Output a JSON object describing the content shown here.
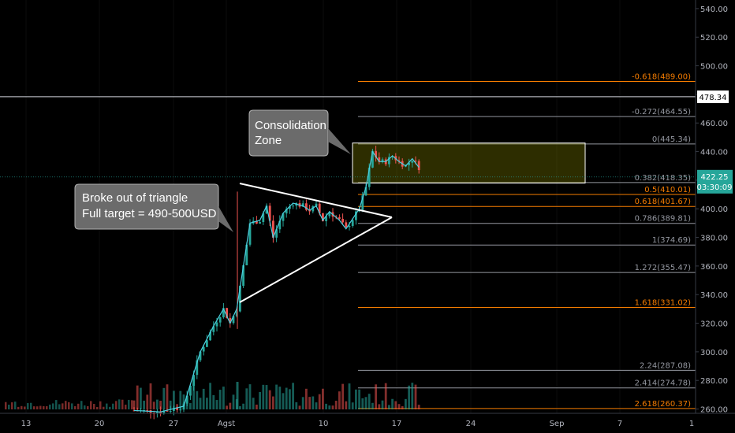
{
  "chart_data": {
    "type": "candlestick",
    "title": "",
    "y_axis": {
      "ticks": [
        "540.00",
        "520.00",
        "500.00",
        "480.00",
        "460.00",
        "440.00",
        "420.00",
        "400.00",
        "380.00",
        "360.00",
        "340.00",
        "320.00",
        "300.00",
        "280.00",
        "260.00"
      ],
      "range": [
        257,
        546
      ]
    },
    "x_axis": {
      "ticks": [
        "13",
        "20",
        "27",
        "Agst",
        "10",
        "17",
        "24",
        "Sep",
        "7",
        "1"
      ]
    },
    "price_levels": [
      {
        "label": "478.34",
        "price": 478.34,
        "color": "#ffffff"
      }
    ],
    "last_price": {
      "price": "422.25",
      "countdown": "03:30:09",
      "color": "#26a69a",
      "value": 422.25
    },
    "fibonacci": [
      {
        "label": "-0.618(489.00)",
        "price": 489.0,
        "color": "#f57c00"
      },
      {
        "label": "-0.272(464.55)",
        "price": 464.55,
        "color": "#9598a1"
      },
      {
        "label": "0(445.34)",
        "price": 445.34,
        "color": "#9598a1"
      },
      {
        "label": "0.382(418.35)",
        "price": 418.35,
        "color": "#9598a1"
      },
      {
        "label": "0.5(410.01)",
        "price": 410.01,
        "color": "#f57c00"
      },
      {
        "label": "0.618(401.67)",
        "price": 401.67,
        "color": "#f57c00"
      },
      {
        "label": "0.786(389.81)",
        "price": 389.81,
        "color": "#9598a1"
      },
      {
        "label": "1(374.69)",
        "price": 374.69,
        "color": "#9598a1"
      },
      {
        "label": "1.272(355.47)",
        "price": 355.47,
        "color": "#9598a1"
      },
      {
        "label": "1.618(331.02)",
        "price": 331.02,
        "color": "#f57c00"
      },
      {
        "label": "2.24(287.08)",
        "price": 287.08,
        "color": "#9598a1"
      },
      {
        "label": "2.414(274.78)",
        "price": 274.78,
        "color": "#9598a1"
      },
      {
        "label": "2.618(260.37)",
        "price": 260.37,
        "color": "#f57c00"
      }
    ],
    "annotations": [
      {
        "text": [
          "Broke out of triangle",
          "Full target = 490-500USD"
        ]
      },
      {
        "text": [
          "Consolidation",
          "Zone"
        ]
      }
    ],
    "consolidation_zone": {
      "price_low": 418,
      "price_high": 446,
      "color": "#808000"
    },
    "up_color": "#26a69a",
    "down_color": "#ef5350",
    "ma_color": "#4dd0e1",
    "candle_path": [
      [
        0,
        259
      ],
      [
        8,
        258
      ],
      [
        15,
        262
      ],
      [
        20,
        300
      ],
      [
        24,
        318
      ],
      [
        27,
        330
      ],
      [
        29,
        320
      ],
      [
        31,
        330
      ],
      [
        35,
        390
      ],
      [
        38,
        392
      ],
      [
        40,
        402
      ],
      [
        42,
        380
      ],
      [
        45,
        397
      ],
      [
        48,
        404
      ],
      [
        51,
        402
      ],
      [
        53,
        399
      ],
      [
        55,
        402
      ],
      [
        57,
        392
      ],
      [
        59,
        398
      ],
      [
        62,
        392
      ],
      [
        64,
        386
      ],
      [
        66,
        393
      ],
      [
        68,
        400
      ],
      [
        70,
        415
      ],
      [
        72,
        440
      ],
      [
        74,
        433
      ],
      [
        76,
        433
      ],
      [
        78,
        437
      ],
      [
        80,
        433
      ],
      [
        82,
        430
      ],
      [
        84,
        435
      ],
      [
        86,
        429
      ]
    ]
  }
}
